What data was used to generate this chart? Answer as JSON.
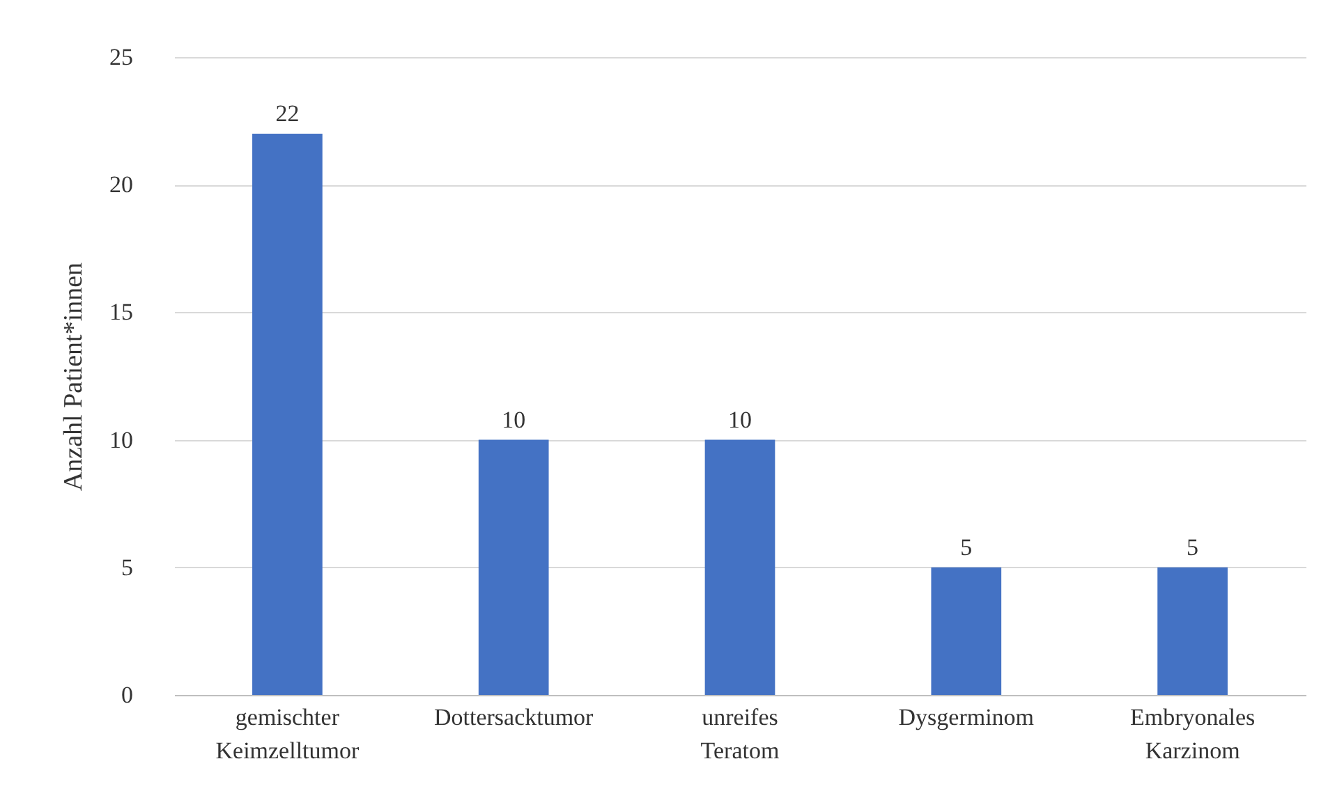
{
  "chart_data": {
    "type": "bar",
    "ylabel": "Anzahl Patient*innen",
    "categories": [
      "gemischter Keimzelltumor",
      "Dottersacktumor",
      "unreifes Teratom",
      "Dysgerminom",
      "Embryonales Karzinom"
    ],
    "values": [
      22,
      10,
      10,
      5,
      5
    ],
    "color": "#4472c4",
    "ylim": [
      0,
      25
    ],
    "yticks": [
      0,
      5,
      10,
      15,
      20,
      25
    ],
    "grid": "y",
    "data_labels": true
  }
}
